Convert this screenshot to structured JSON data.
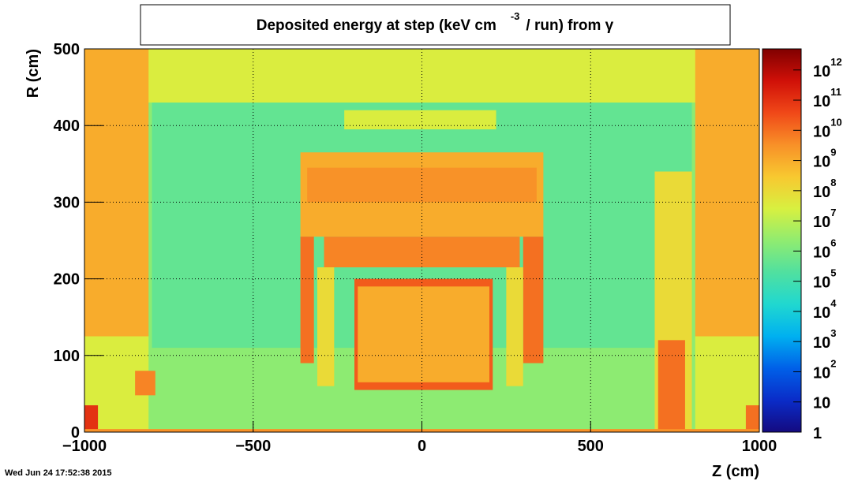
{
  "chart_data": {
    "type": "heatmap",
    "title": [
      {
        "text": "Deposited energy at step (keV cm"
      },
      {
        "text": "-3",
        "sup": true
      },
      {
        "text": "/ run)  from  γ"
      }
    ],
    "xlabel": "Z (cm)",
    "ylabel": "R (cm)",
    "footer": "Wed Jun 24 17:52:38 2015",
    "xlim": [
      -1000,
      1000
    ],
    "xticks": [
      {
        "value": -1000,
        "label": "−1000"
      },
      {
        "value": -500,
        "label": "−500"
      },
      0,
      500,
      1000
    ],
    "ylim": [
      0,
      500
    ],
    "yticks": [
      0,
      100,
      200,
      300,
      400,
      500
    ],
    "zlim": [
      1,
      5000000000000
    ],
    "zlog": true,
    "zticks": [
      1,
      10,
      {
        "value": 100,
        "label": "10",
        "sup": "2"
      },
      {
        "value": 1000,
        "label": "10",
        "sup": "3"
      },
      {
        "value": 10000,
        "label": "10",
        "sup": "4"
      },
      {
        "value": 100000,
        "label": "10",
        "sup": "5"
      },
      {
        "value": 1000000,
        "label": "10",
        "sup": "6"
      },
      {
        "value": 10000000,
        "label": "10",
        "sup": "7"
      },
      {
        "value": 100000000,
        "label": "10",
        "sup": "8"
      },
      {
        "value": 1000000000,
        "label": "10",
        "sup": "9"
      },
      {
        "value": 10000000000,
        "label": "10",
        "sup": "10"
      },
      {
        "value": 100000000000,
        "label": "10",
        "sup": "11"
      },
      {
        "value": 1000000000000,
        "label": "10",
        "sup": "12"
      }
    ],
    "grid": true,
    "palette": [
      "#140a80",
      "#0a2cc8",
      "#0060e8",
      "#00b0f0",
      "#20d8d0",
      "#50e0a0",
      "#90ec70",
      "#d8f040",
      "#f8c830",
      "#f89028",
      "#f04818",
      "#d01008",
      "#800000"
    ],
    "regions": [
      {
        "z": [
          -1000,
          1000
        ],
        "r": [
          0,
          500
        ],
        "value": 2000000
      },
      {
        "z": [
          -800,
          800
        ],
        "r": [
          110,
          430
        ],
        "value": 400000
      },
      {
        "z": [
          -1000,
          1000
        ],
        "r": [
          430,
          500
        ],
        "value": 30000000
      },
      {
        "z": [
          -1000,
          -810
        ],
        "r": [
          0,
          125
        ],
        "value": 30000000
      },
      {
        "z": [
          -1000,
          -810
        ],
        "r": [
          125,
          500
        ],
        "value": 1000000000
      },
      {
        "z": [
          810,
          1000
        ],
        "r": [
          0,
          125
        ],
        "value": 30000000
      },
      {
        "z": [
          810,
          1000
        ],
        "r": [
          125,
          500
        ],
        "value": 1000000000
      },
      {
        "z": [
          -230,
          220
        ],
        "r": [
          395,
          420
        ],
        "value": 30000000
      },
      {
        "z": [
          -360,
          360
        ],
        "r": [
          255,
          365
        ],
        "value": 1000000000
      },
      {
        "z": [
          -340,
          340
        ],
        "r": [
          300,
          345
        ],
        "value": 3000000000
      },
      {
        "z": [
          -290,
          290
        ],
        "r": [
          215,
          255
        ],
        "value": 5000000000
      },
      {
        "z": [
          -360,
          -320
        ],
        "r": [
          90,
          255
        ],
        "value": 10000000000
      },
      {
        "z": [
          300,
          360
        ],
        "r": [
          90,
          255
        ],
        "value": 10000000000
      },
      {
        "z": [
          -310,
          -260
        ],
        "r": [
          60,
          215
        ],
        "value": 100000000
      },
      {
        "z": [
          250,
          300
        ],
        "r": [
          60,
          215
        ],
        "value": 100000000
      },
      {
        "z": [
          -200,
          210
        ],
        "r": [
          55,
          200
        ],
        "value": 20000000000
      },
      {
        "z": [
          -190,
          200
        ],
        "r": [
          65,
          190
        ],
        "value": 1000000000
      },
      {
        "z": [
          690,
          800
        ],
        "r": [
          0,
          340
        ],
        "value": 100000000
      },
      {
        "z": [
          700,
          780
        ],
        "r": [
          0,
          120
        ],
        "value": 10000000000
      },
      {
        "z": [
          -850,
          -790
        ],
        "r": [
          48,
          80
        ],
        "value": 5000000000
      },
      {
        "z": [
          -1000,
          -960
        ],
        "r": [
          0,
          35
        ],
        "value": 100000000000
      },
      {
        "z": [
          960,
          1000
        ],
        "r": [
          0,
          35
        ],
        "value": 10000000000
      },
      {
        "z": [
          -1000,
          1000
        ],
        "r": [
          0,
          4
        ],
        "value": 3000000000
      }
    ]
  }
}
